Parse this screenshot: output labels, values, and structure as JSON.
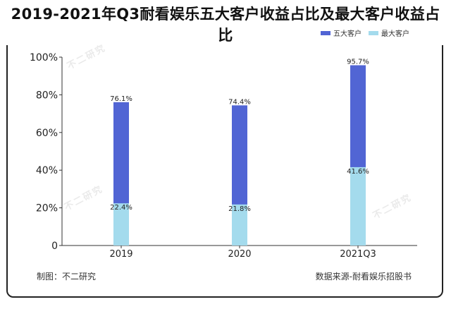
{
  "title": "2019-2021年Q3耐看娱乐五大客户收益占比及最大客户收益占比",
  "footer": {
    "left": "制图：不二研究",
    "right": "数据来源-耐看娱乐招股书"
  },
  "watermark": "不二研究",
  "colors": {
    "top5": "#5165d4",
    "largest": "#a4dbed",
    "axis": "#333333"
  },
  "chart_data": {
    "type": "bar",
    "categories": [
      "2019",
      "2020",
      "2021Q3"
    ],
    "series": [
      {
        "name": "五大客户",
        "values": [
          76.1,
          74.4,
          95.7
        ],
        "labels": [
          "76.1%",
          "74.4%",
          "95.7%"
        ]
      },
      {
        "name": "最大客户",
        "values": [
          22.4,
          21.8,
          41.6
        ],
        "labels": [
          "22.4%",
          "21.8%",
          "41.6%"
        ]
      }
    ],
    "yticks": [
      "0",
      "20%",
      "40%",
      "60%",
      "80%",
      "100%"
    ],
    "ylim": [
      0,
      100
    ],
    "legend_position": "top-right",
    "grid": false
  }
}
